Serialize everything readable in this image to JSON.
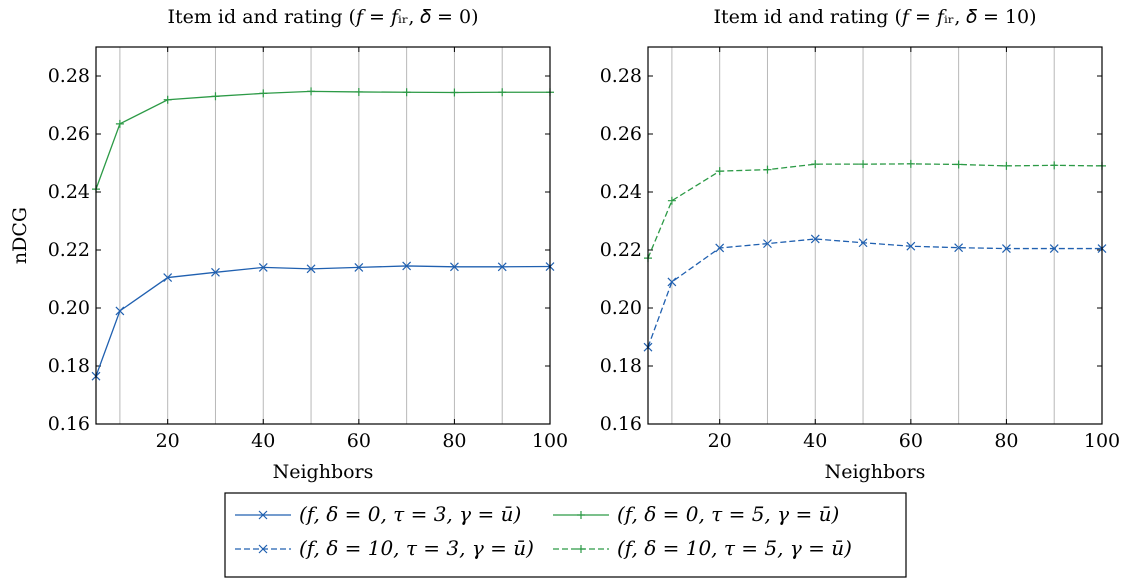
{
  "chart_data": [
    {
      "type": "line",
      "title": "Item id and rating (f = f_ir, δ = 0)",
      "title_display": "Item id and rating (𝑓 = 𝑓ᵢᵣ, 𝛿 = 0)",
      "xlabel": "Neighbors",
      "ylabel": "nDCG",
      "xlim": [
        5,
        100
      ],
      "ylim": [
        0.16,
        0.29
      ],
      "xticks": [
        "20",
        "40",
        "60",
        "80",
        "100"
      ],
      "yticks": [
        "0.16",
        "0.18",
        "0.20",
        "0.22",
        "0.24",
        "0.26",
        "0.28"
      ],
      "grid": "vertical",
      "x": [
        5,
        10,
        20,
        30,
        40,
        50,
        60,
        70,
        80,
        90,
        100
      ],
      "series": [
        {
          "name": "(f, δ = 0, τ = 3, γ = ū)",
          "color": "#2060b0",
          "dash": "solid",
          "marker": "x",
          "values": [
            0.1765,
            0.199,
            0.2105,
            0.2123,
            0.214,
            0.2135,
            0.214,
            0.2145,
            0.2142,
            0.2142,
            0.2143
          ]
        },
        {
          "name": "(f, δ = 0, τ = 5, γ = ū)",
          "color": "#2c9a46",
          "dash": "solid",
          "marker": "+",
          "values": [
            0.241,
            0.2635,
            0.2718,
            0.273,
            0.274,
            0.2747,
            0.2745,
            0.2744,
            0.2743,
            0.2744,
            0.2744
          ]
        }
      ]
    },
    {
      "type": "line",
      "title": "Item id and rating (f = f_ir, δ = 10)",
      "title_display": "Item id and rating (𝑓 = 𝑓ᵢᵣ, 𝛿 = 10)",
      "xlabel": "Neighbors",
      "ylabel": "",
      "xlim": [
        5,
        100
      ],
      "ylim": [
        0.16,
        0.29
      ],
      "xticks": [
        "20",
        "40",
        "60",
        "80",
        "100"
      ],
      "yticks": [
        "0.16",
        "0.18",
        "0.20",
        "0.22",
        "0.24",
        "0.26",
        "0.28"
      ],
      "grid": "vertical",
      "x": [
        5,
        10,
        20,
        30,
        40,
        50,
        60,
        70,
        80,
        90,
        100
      ],
      "series": [
        {
          "name": "(f, δ = 10, τ = 3, γ = ū)",
          "color": "#2060b0",
          "dash": "dashed",
          "marker": "x",
          "values": [
            0.1865,
            0.209,
            0.2207,
            0.2222,
            0.2238,
            0.2225,
            0.2213,
            0.2208,
            0.2205,
            0.2205,
            0.2205
          ]
        },
        {
          "name": "(f, δ = 10, τ = 5, γ = ū)",
          "color": "#2c9a46",
          "dash": "dashed",
          "marker": "+",
          "values": [
            0.2172,
            0.237,
            0.2472,
            0.2477,
            0.2496,
            0.2496,
            0.2497,
            0.2495,
            0.249,
            0.2492,
            0.249
          ]
        }
      ]
    }
  ],
  "legend": {
    "placement": "bottom-center",
    "entries": [
      {
        "label": "(f, δ = 0, τ = 3, γ = ū)",
        "color": "#2060b0",
        "dash": "solid",
        "marker": "x"
      },
      {
        "label": "(f, δ = 0, τ = 5, γ = ū)",
        "color": "#2c9a46",
        "dash": "solid",
        "marker": "+"
      },
      {
        "label": "(f, δ = 10, τ = 3, γ = ū)",
        "color": "#2060b0",
        "dash": "dashed",
        "marker": "x"
      },
      {
        "label": "(f, δ = 10, τ = 5, γ = ū)",
        "color": "#2c9a46",
        "dash": "dashed",
        "marker": "+"
      }
    ]
  }
}
